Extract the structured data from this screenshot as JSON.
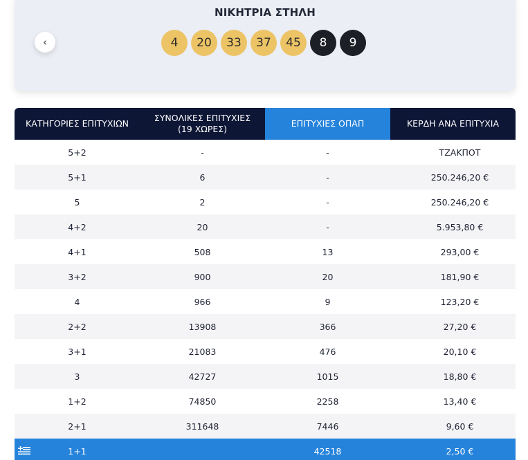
{
  "winning": {
    "title": "ΝΙΚΗΤΡΙΑ ΣΤΗΛΗ",
    "main_numbers": [
      "4",
      "20",
      "33",
      "37",
      "45"
    ],
    "bonus_numbers": [
      "8",
      "9"
    ],
    "main_color": "#ecc466",
    "bonus_color": "#1d1f26",
    "prev_icon": "‹"
  },
  "table": {
    "headers": {
      "category": "ΚΑΤΗΓΟΡΙΕΣ ΕΠΙΤΥΧΙΩΝ",
      "total_wins_line1": "ΣΥΝΟΛΙΚΕΣ ΕΠΙΤΥΧΙΕΣ",
      "total_wins_line2": "(19 ΧΩΡΕΣ)",
      "opap_wins": "ΕΠΙΤΥΧΙΕΣ ΟΠΑΠ",
      "prize": "ΚΕΡΔΗ ΑΝΑ ΕΠΙΤΥΧΙΑ"
    },
    "rows": [
      {
        "category": "5+2",
        "total": "-",
        "opap": "-",
        "prize": "ΤΖΑΚΠΟΤ"
      },
      {
        "category": "5+1",
        "total": "6",
        "opap": "-",
        "prize": "250.246,20 €"
      },
      {
        "category": "5",
        "total": "2",
        "opap": "-",
        "prize": "250.246,20 €"
      },
      {
        "category": "4+2",
        "total": "20",
        "opap": "-",
        "prize": "5.953,80 €"
      },
      {
        "category": "4+1",
        "total": "508",
        "opap": "13",
        "prize": "293,00 €"
      },
      {
        "category": "3+2",
        "total": "900",
        "opap": "20",
        "prize": "181,90 €"
      },
      {
        "category": "4",
        "total": "966",
        "opap": "9",
        "prize": "123,20 €"
      },
      {
        "category": "2+2",
        "total": "13908",
        "opap": "366",
        "prize": "27,20 €"
      },
      {
        "category": "3+1",
        "total": "21083",
        "opap": "476",
        "prize": "20,10 €"
      },
      {
        "category": "3",
        "total": "42727",
        "opap": "1015",
        "prize": "18,80 €"
      },
      {
        "category": "1+2",
        "total": "74850",
        "opap": "2258",
        "prize": "13,40 €"
      },
      {
        "category": "2+1",
        "total": "311648",
        "opap": "7446",
        "prize": "9,60 €"
      },
      {
        "category": "1+1",
        "total": "",
        "opap": "42518",
        "prize": "2,50 €"
      }
    ],
    "header_dark_color": "#0e1636",
    "accent_blue": "#2583db",
    "highlight_icon": "greek-flag-icon"
  }
}
